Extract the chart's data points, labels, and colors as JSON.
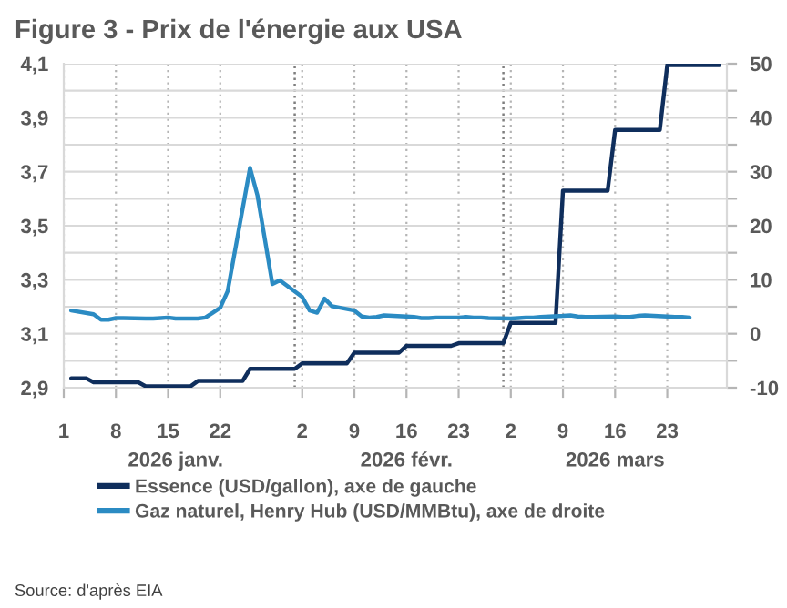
{
  "chart_data": {
    "type": "line",
    "title": "Figure 3 - Prix de l'énergie aux USA",
    "annotations": [
      "Source: d'après EIA"
    ],
    "xlim": [
      "2026-01-01",
      "2026-03-31"
    ],
    "xticks": [
      {
        "value": "2026-01-01",
        "label": "1"
      },
      {
        "value": "2026-01-08",
        "label": "8"
      },
      {
        "value": "2026-01-15",
        "label": "15"
      },
      {
        "value": "2026-01-22",
        "label": "22"
      },
      {
        "value": "2026-02-02",
        "label": "2"
      },
      {
        "value": "2026-02-09",
        "label": "9"
      },
      {
        "value": "2026-02-16",
        "label": "16"
      },
      {
        "value": "2026-02-23",
        "label": "23"
      },
      {
        "value": "2026-03-02",
        "label": "2"
      },
      {
        "value": "2026-03-09",
        "label": "9"
      },
      {
        "value": "2026-03-16",
        "label": "16"
      },
      {
        "value": "2026-03-23",
        "label": "23"
      }
    ],
    "x2lim": [
      "2026-01-01",
      "2026-03-31"
    ],
    "x2ticks": [
      {
        "value": "2026-01-16",
        "label": "2026 janv."
      },
      {
        "value": "2026-02-01",
        "label": null
      },
      {
        "value": "2026-02-16",
        "label": "2026 févr."
      },
      {
        "value": "2026-03-01",
        "label": null
      },
      {
        "value": "2026-03-16",
        "label": "2026 mars"
      }
    ],
    "ylim": [
      2.9,
      4.1
    ],
    "yticks": [
      {
        "value": 2.9,
        "label": "2,9"
      },
      {
        "value": 3.0,
        "label": null
      },
      {
        "value": 3.1,
        "label": "3,1"
      },
      {
        "value": 3.2,
        "label": null
      },
      {
        "value": 3.3,
        "label": "3,3"
      },
      {
        "value": 3.4,
        "label": null
      },
      {
        "value": 3.5,
        "label": "3,5"
      },
      {
        "value": 3.6,
        "label": null
      },
      {
        "value": 3.7,
        "label": "3,7"
      },
      {
        "value": 3.8,
        "label": null
      },
      {
        "value": 3.9,
        "label": "3,9"
      },
      {
        "value": 4.0,
        "label": null
      },
      {
        "value": 4.1,
        "label": "4,1"
      }
    ],
    "y2lim": [
      -10,
      50
    ],
    "y2ticks": [
      -10,
      {
        "value": -5,
        "label": null
      },
      0,
      {
        "value": 5,
        "label": null
      },
      10,
      {
        "value": 15,
        "label": null
      },
      20,
      {
        "value": 25,
        "label": null
      },
      30,
      {
        "value": 35,
        "label": null
      },
      40,
      {
        "value": 45,
        "label": null
      },
      50
    ],
    "grid": true,
    "legend": "bottom",
    "series": [
      {
        "name": "Essence (USD/gallon), axe de gauche",
        "color": "#0f2e5c",
        "x": [
          "2026-01-02",
          "2026-01-04",
          "2026-01-05",
          "2026-01-11",
          "2026-01-12",
          "2026-01-18",
          "2026-01-19",
          "2026-01-25",
          "2026-01-26",
          "2026-02-01",
          "2026-02-02",
          "2026-02-08",
          "2026-02-09",
          "2026-02-15",
          "2026-02-16",
          "2026-02-22",
          "2026-02-23",
          "2026-03-01",
          "2026-03-02",
          "2026-03-08",
          "2026-03-09",
          "2026-03-15",
          "2026-03-16",
          "2026-03-22",
          "2026-03-23",
          "2026-03-30"
        ],
        "values": [
          2.935,
          2.935,
          2.92,
          2.92,
          2.905,
          2.905,
          2.925,
          2.925,
          2.97,
          2.97,
          2.99,
          2.99,
          3.03,
          3.03,
          3.055,
          3.055,
          3.065,
          3.065,
          3.14,
          3.14,
          3.63,
          3.63,
          3.855,
          3.855,
          4.095,
          4.095
        ]
      },
      {
        "name": "Gaz naturel, Henry Hub (USD/MMBtu), axe de droite",
        "color": "#2b8bc3",
        "axis": "y2",
        "x": [
          "2026-01-02",
          "2026-01-05",
          "2026-01-06",
          "2026-01-07",
          "2026-01-08",
          "2026-01-09",
          "2026-01-12",
          "2026-01-13",
          "2026-01-14",
          "2026-01-15",
          "2026-01-16",
          "2026-01-19",
          "2026-01-20",
          "2026-01-21",
          "2026-01-22",
          "2026-01-23",
          "2026-01-26",
          "2026-01-27",
          "2026-01-28",
          "2026-01-29",
          "2026-01-30",
          "2026-02-02",
          "2026-02-03",
          "2026-02-04",
          "2026-02-05",
          "2026-02-06",
          "2026-02-09",
          "2026-02-10",
          "2026-02-11",
          "2026-02-12",
          "2026-02-13",
          "2026-02-16",
          "2026-02-17",
          "2026-02-18",
          "2026-02-19",
          "2026-02-20",
          "2026-02-23",
          "2026-02-24",
          "2026-02-25",
          "2026-02-26",
          "2026-02-27",
          "2026-03-02",
          "2026-03-03",
          "2026-03-04",
          "2026-03-05",
          "2026-03-06",
          "2026-03-09",
          "2026-03-10",
          "2026-03-11",
          "2026-03-12",
          "2026-03-13",
          "2026-03-16",
          "2026-03-17",
          "2026-03-18",
          "2026-03-19",
          "2026-03-20",
          "2026-03-23",
          "2026-03-24",
          "2026-03-25",
          "2026-03-26"
        ],
        "values": [
          4.3,
          3.6,
          2.6,
          2.6,
          2.9,
          2.9,
          2.8,
          2.8,
          2.9,
          3.0,
          2.8,
          2.8,
          3.0,
          3.9,
          4.8,
          7.9,
          30.7,
          25.6,
          17.4,
          9.2,
          9.9,
          6.8,
          4.3,
          3.9,
          6.5,
          5.1,
          4.3,
          3.2,
          3.0,
          3.1,
          3.4,
          3.2,
          3.1,
          2.9,
          2.9,
          3.0,
          3.0,
          3.1,
          3.0,
          3.0,
          2.9,
          2.8,
          2.9,
          3.0,
          3.0,
          3.1,
          3.3,
          3.4,
          3.2,
          3.1,
          3.1,
          3.2,
          3.1,
          3.1,
          3.3,
          3.4,
          3.2,
          3.1,
          3.1,
          3.0
        ]
      }
    ]
  }
}
